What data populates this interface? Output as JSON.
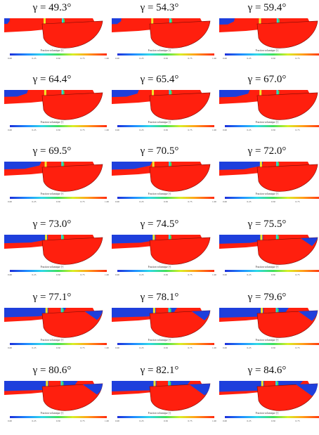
{
  "colorbar": {
    "label": "Fraction volumique [-]",
    "ticks": [
      "0.00",
      "0.25",
      "0.50",
      "0.75",
      "1.00"
    ]
  },
  "colors": {
    "water": "#ff1f0e",
    "air": "#1e3fdc",
    "interface_yellow": "#f2e62a",
    "interface_cyan": "#2fd6e6",
    "interface_green": "#3be05a"
  },
  "panels": [
    {
      "title": "γ = 49.3°",
      "level": 0.0
    },
    {
      "title": "γ = 54.3°",
      "level": 0.05
    },
    {
      "title": "γ = 59.4°",
      "level": 0.12
    },
    {
      "title": "γ = 64.4°",
      "level": 0.22
    },
    {
      "title": "γ = 65.4°",
      "level": 0.26
    },
    {
      "title": "γ = 67.0°",
      "level": 0.3
    },
    {
      "title": "γ = 69.5°",
      "level": 0.38
    },
    {
      "title": "γ = 70.5°",
      "level": 0.42
    },
    {
      "title": "γ = 72.0°",
      "level": 0.47
    },
    {
      "title": "γ = 73.0°",
      "level": 0.52
    },
    {
      "title": "γ = 74.5°",
      "level": 0.57
    },
    {
      "title": "γ = 75.5°",
      "level": 0.61
    },
    {
      "title": "γ = 77.1°",
      "level": 0.68
    },
    {
      "title": "γ = 78.1°",
      "level": 0.72
    },
    {
      "title": "γ = 79.6°",
      "level": 0.77
    },
    {
      "title": "γ = 80.6°",
      "level": 0.82
    },
    {
      "title": "γ = 82.1°",
      "level": 0.88
    },
    {
      "title": "γ = 84.6°",
      "level": 0.94
    }
  ]
}
